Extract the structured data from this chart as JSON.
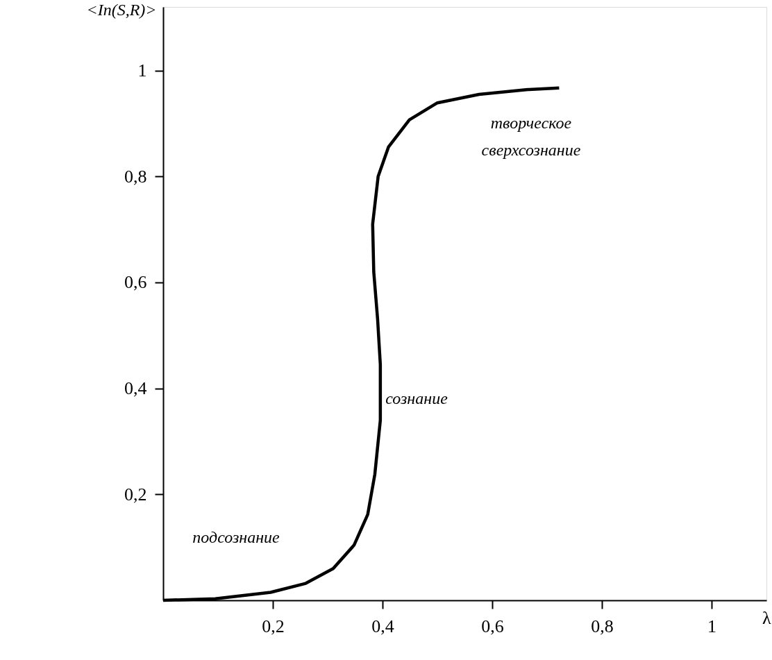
{
  "chart_data": {
    "type": "line",
    "xlabel": "λ",
    "ylabel": "<Iп(S,R)>",
    "x": [
      0,
      0.095,
      0.196,
      0.26,
      0.31,
      0.348,
      0.373,
      0.386,
      0.396,
      0.396,
      0.391,
      0.384,
      0.382,
      0.392,
      0.411,
      0.449,
      0.5,
      0.576,
      0.665,
      0.722
    ],
    "series": [
      {
        "color": "#000000",
        "values": [
          0,
          0.003,
          0.015,
          0.032,
          0.06,
          0.104,
          0.162,
          0.238,
          0.34,
          0.445,
          0.531,
          0.62,
          0.71,
          0.8,
          0.856,
          0.907,
          0.939,
          0.955,
          0.964,
          0.967
        ]
      }
    ],
    "xlim": [
      0,
      1.1
    ],
    "ylim": [
      0,
      1.12
    ],
    "xticks": [
      {
        "value": 0.2,
        "label": "0,2"
      },
      {
        "value": 0.4,
        "label": "0,4"
      },
      {
        "value": 0.6,
        "label": "0,6"
      },
      {
        "value": 0.8,
        "label": "0,8"
      },
      1
    ],
    "yticks": [
      {
        "value": 0.2,
        "label": "0,2"
      },
      {
        "value": 0.4,
        "label": "0,4"
      },
      {
        "value": 0.6,
        "label": "0,6"
      },
      {
        "value": 0.8,
        "label": "0,8"
      },
      1
    ],
    "annotations": [
      "подсознание",
      "сознание",
      "творческое",
      "сверхсознание"
    ],
    "grid": false,
    "marker": "none",
    "line_style": "solid"
  }
}
